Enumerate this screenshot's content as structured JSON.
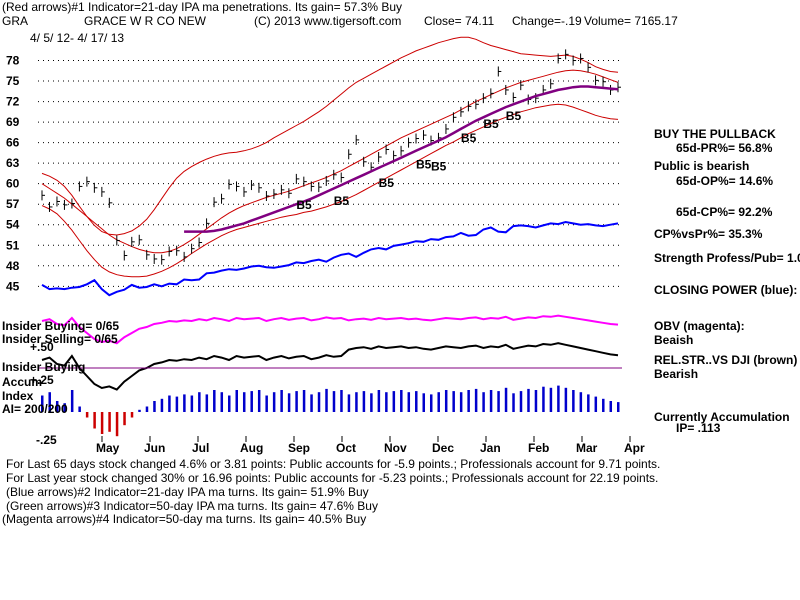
{
  "header": {
    "line1": "(Red arrows)#1 Indicator=21-day IPA ma penetrations. Its gain= 57.3% Buy",
    "ticker": "GRA",
    "company": "GRACE W R CO NEW",
    "copyright": "(C) 2013 www.tigersoft.com",
    "close": "Close=  74.11",
    "change": "Change=-.19",
    "volume": "Volume=  7165.17",
    "date_range": "4/ 5/ 12-  4/ 17/ 13"
  },
  "right_panel": {
    "buy_pullback": "BUY THE PULLBACK",
    "pr": "65d-PR%= 56.8%",
    "public_bearish": "Public is bearish",
    "op": "65d-OP%= 14.6%",
    "cp": "65d-CP%= 92.2%",
    "cpvspr": "CP%vsPr%=  35.3%",
    "strength": "Strength Profess/Pub= 1.0",
    "closing_power": "CLOSING POWER (blue):",
    "obv": "OBV (magenta):",
    "obv_status": "Beaish",
    "relstr": "REL.STR..VS DJI (brown)",
    "relstr_status": "Bearish",
    "accum": "Currently Accumulation",
    "ip": "IP=  .113"
  },
  "left_panel": {
    "insider_buying": "Insider Buying= 0/65",
    "insider_selling": "Insider Selling= 0/65",
    "insider_buying2": "Insider Buying",
    "accum": "Accum",
    "index": "Index",
    "ai": "AI= 200/200"
  },
  "footer": {
    "line1": "For Last 65 days stock changed  4.6% or  3.81 points:  Public accounts for -5.9 points.;  Professionals account for  9.71 points.",
    "line2": "For Last year stock changed  30% or  16.96 points:  Public accounts for -5.23 points.;  Professionals account for  22.19 points.",
    "line3": "(Blue arrows)#2 Indicator=21-day IPA ma turns. Its gain= 51.9% Buy",
    "line4": "(Green arrows)#3 Indicator=50-day IPA ma turns. Its gain= 47.6% Buy",
    "line5": "(Magenta arrows)#4 Indicator=50-day ma turns. Its gain= 40.5% Buy"
  },
  "colors": {
    "price": "#000000",
    "band": "#cc0000",
    "ma50": "#800080",
    "closing_power": "#0000ff",
    "obv": "#ff00ff",
    "relstr": "#8b4513",
    "accum_bar": "#0000cc",
    "accum_neg": "#cc0000",
    "grid": "#000000"
  },
  "chart_data": {
    "type": "line",
    "title": "GRACE W R CO NEW",
    "ylim": [
      43,
      81
    ],
    "yticks": [
      45,
      48,
      51,
      54,
      57,
      60,
      63,
      66,
      69,
      72,
      75,
      78
    ],
    "months": [
      "May",
      "Jun",
      "Jul",
      "Aug",
      "Sep",
      "Oct",
      "Nov",
      "Dec",
      "Jan",
      "Feb",
      "Mar",
      "Apr"
    ],
    "accum_ticks": [
      "+.50",
      "+.25",
      "-.25"
    ],
    "price": [
      58.3,
      56.6,
      57.4,
      56.9,
      57.1,
      59.6,
      60.3,
      59.4,
      58.8,
      57.2,
      51.7,
      49.5,
      51.5,
      51.8,
      49.6,
      49.0,
      48.9,
      50.1,
      50.2,
      49.3,
      50.5,
      51.4,
      54.2,
      57.3,
      57.8,
      59.9,
      59.6,
      58.8,
      59.8,
      59.4,
      58.2,
      58.5,
      59.1,
      58.6,
      60.7,
      60.3,
      59.6,
      59.5,
      60.4,
      61.3,
      60.9,
      64.3,
      66.4,
      63.2,
      62.4,
      63.9,
      65.0,
      64.1,
      64.8,
      66.0,
      66.6,
      67.1,
      66.3,
      66.7,
      68.0,
      69.7,
      70.5,
      71.3,
      71.6,
      72.5,
      73.2,
      76.4,
      73.7,
      72.6,
      74.4,
      72.3,
      72.5,
      73.7,
      74.6,
      78.3,
      78.9,
      78.0,
      78.3,
      77.0,
      75.1,
      74.9,
      73.7,
      74.1
    ],
    "upper_band": [
      61.5,
      61.1,
      60.5,
      59.6,
      58.3,
      56.7,
      55.2,
      53.9,
      53.0,
      52.6,
      52.5,
      52.7,
      53.1,
      53.8,
      54.8,
      56.2,
      57.8,
      59.4,
      60.8,
      61.8,
      62.5,
      63.1,
      63.6,
      64.0,
      64.3,
      64.5,
      64.6,
      64.8,
      65.1,
      65.5,
      66.0,
      66.7,
      67.3,
      67.9,
      68.5,
      69.1,
      69.8,
      70.5,
      71.3,
      72.2,
      73.1,
      74.0,
      74.8,
      75.4,
      76.0,
      76.6,
      77.2,
      77.8,
      78.4,
      78.9,
      79.4,
      79.8,
      80.2,
      80.6,
      80.9,
      81.2,
      81.4,
      81.4,
      81.1,
      80.6,
      80.2,
      79.9,
      79.6,
      79.3,
      79.0,
      78.9,
      78.8,
      78.7,
      78.6,
      78.7,
      78.8,
      78.6,
      78.2,
      77.7,
      77.1,
      76.7,
      76.4,
      76.3
    ],
    "lower_band": [
      56.8,
      56.3,
      55.6,
      54.5,
      53.2,
      51.7,
      50.2,
      48.9,
      47.8,
      47.1,
      46.7,
      46.5,
      46.4,
      46.4,
      46.5,
      46.8,
      47.2,
      47.7,
      48.3,
      49.0,
      49.8,
      50.5,
      51.2,
      51.8,
      52.4,
      52.9,
      53.3,
      53.6,
      53.9,
      54.2,
      54.5,
      54.8,
      55.1,
      55.3,
      55.5,
      55.8,
      56.0,
      56.3,
      56.6,
      57.0,
      57.4,
      57.9,
      58.4,
      59.0,
      59.6,
      60.2,
      60.8,
      61.4,
      62.0,
      62.6,
      63.2,
      63.8,
      64.4,
      65.0,
      65.6,
      66.1,
      66.7,
      67.3,
      67.8,
      68.3,
      68.8,
      69.3,
      69.7,
      70.1,
      70.5,
      70.8,
      71.1,
      71.3,
      71.5,
      71.6,
      71.5,
      71.2,
      70.8,
      70.4,
      70.0,
      69.7,
      69.5,
      69.4
    ],
    "ma21": [
      60.0,
      59.3,
      58.6,
      57.9,
      57.0,
      56.1,
      55.2,
      54.3,
      53.4,
      52.5,
      51.8,
      51.3,
      50.8,
      50.4,
      50.1,
      49.9,
      49.9,
      50.1,
      50.5,
      51.1,
      51.8,
      52.6,
      53.4,
      54.2,
      55.0,
      55.7,
      56.3,
      56.8,
      57.2,
      57.6,
      58.0,
      58.3,
      58.6,
      58.9,
      59.3,
      59.7,
      60.1,
      60.5,
      60.9,
      61.4,
      61.9,
      62.5,
      63.1,
      63.7,
      64.3,
      64.9,
      65.5,
      66.1,
      66.7,
      67.2,
      67.7,
      68.2,
      68.7,
      69.2,
      69.7,
      70.2,
      70.8,
      71.4,
      72.0,
      72.5,
      73.0,
      73.5,
      74.0,
      74.4,
      74.8,
      75.1,
      75.4,
      75.7,
      76.0,
      76.3,
      76.5,
      76.6,
      76.5,
      76.3,
      76.0,
      75.6,
      75.2,
      74.8
    ],
    "ma50": [
      null,
      null,
      null,
      null,
      null,
      null,
      null,
      null,
      null,
      null,
      null,
      null,
      null,
      null,
      null,
      null,
      null,
      null,
      null,
      53.0,
      53.0,
      53.0,
      53.0,
      53.1,
      53.3,
      53.6,
      53.9,
      54.2,
      54.6,
      55.0,
      55.4,
      55.8,
      56.2,
      56.6,
      57.0,
      57.4,
      57.8,
      58.3,
      58.8,
      59.3,
      59.8,
      60.3,
      60.8,
      61.3,
      61.8,
      62.3,
      62.8,
      63.3,
      63.8,
      64.3,
      64.8,
      65.3,
      65.8,
      66.3,
      66.8,
      67.4,
      68.0,
      68.6,
      69.2,
      69.7,
      70.2,
      70.7,
      71.2,
      71.6,
      72.0,
      72.4,
      72.8,
      73.1,
      73.4,
      73.7,
      73.9,
      74.1,
      74.2,
      74.2,
      74.1,
      74.0,
      73.9,
      73.8
    ],
    "closing_power": [
      45.2,
      44.6,
      44.7,
      44.6,
      44.8,
      44.9,
      45.3,
      45.9,
      44.6,
      43.7,
      44.2,
      44.5,
      45.2,
      44.8,
      44.9,
      45.3,
      45.0,
      45.4,
      45.3,
      46.0,
      45.9,
      46.0,
      46.9,
      47.0,
      47.3,
      47.5,
      47.4,
      47.6,
      47.9,
      48.0,
      47.8,
      47.7,
      47.9,
      48.1,
      48.5,
      48.4,
      48.7,
      48.9,
      48.6,
      49.2,
      49.6,
      49.8,
      49.3,
      49.9,
      50.4,
      50.6,
      50.4,
      50.9,
      51.1,
      51.3,
      51.6,
      51.5,
      51.9,
      51.8,
      52.2,
      52.3,
      52.8,
      52.4,
      52.5,
      53.3,
      53.6,
      53.0,
      52.9,
      53.8,
      53.9,
      53.8,
      53.6,
      53.9,
      54.2,
      54.1,
      54.4,
      54.2,
      54.0,
      54.1,
      53.9,
      53.8,
      54.0,
      54.2
    ],
    "accum_index": [
      0.15,
      0.18,
      0.1,
      0.08,
      0.2,
      0.05,
      -0.05,
      -0.15,
      -0.2,
      -0.18,
      -0.22,
      -0.12,
      -0.05,
      0.02,
      0.05,
      0.1,
      0.12,
      0.15,
      0.14,
      0.16,
      0.15,
      0.18,
      0.16,
      0.2,
      0.18,
      0.15,
      0.2,
      0.18,
      0.19,
      0.2,
      0.15,
      0.18,
      0.2,
      0.17,
      0.19,
      0.2,
      0.16,
      0.18,
      0.21,
      0.19,
      0.2,
      0.16,
      0.18,
      0.19,
      0.17,
      0.2,
      0.18,
      0.19,
      0.2,
      0.18,
      0.19,
      0.17,
      0.16,
      0.18,
      0.2,
      0.19,
      0.18,
      0.2,
      0.21,
      0.18,
      0.2,
      0.19,
      0.22,
      0.17,
      0.19,
      0.21,
      0.2,
      0.23,
      0.22,
      0.24,
      0.22,
      0.2,
      0.18,
      0.16,
      0.14,
      0.12,
      0.1,
      0.09
    ],
    "signals": [
      {
        "label": "B5",
        "type": "label",
        "index": 34
      },
      {
        "label": "B5",
        "type": "label",
        "index": 39
      },
      {
        "label": "B5",
        "type": "label",
        "index": 45
      },
      {
        "label": "B5",
        "type": "label",
        "index": 52
      },
      {
        "label": "B5",
        "type": "label",
        "index": 56
      },
      {
        "label": "B5",
        "type": "label",
        "index": 59
      },
      {
        "label": "B5",
        "type": "label",
        "index": 62
      },
      {
        "label": "B5",
        "type": "label",
        "index": 50
      }
    ],
    "signal_b5": "B5",
    "signal_b5_bold": "B5"
  }
}
